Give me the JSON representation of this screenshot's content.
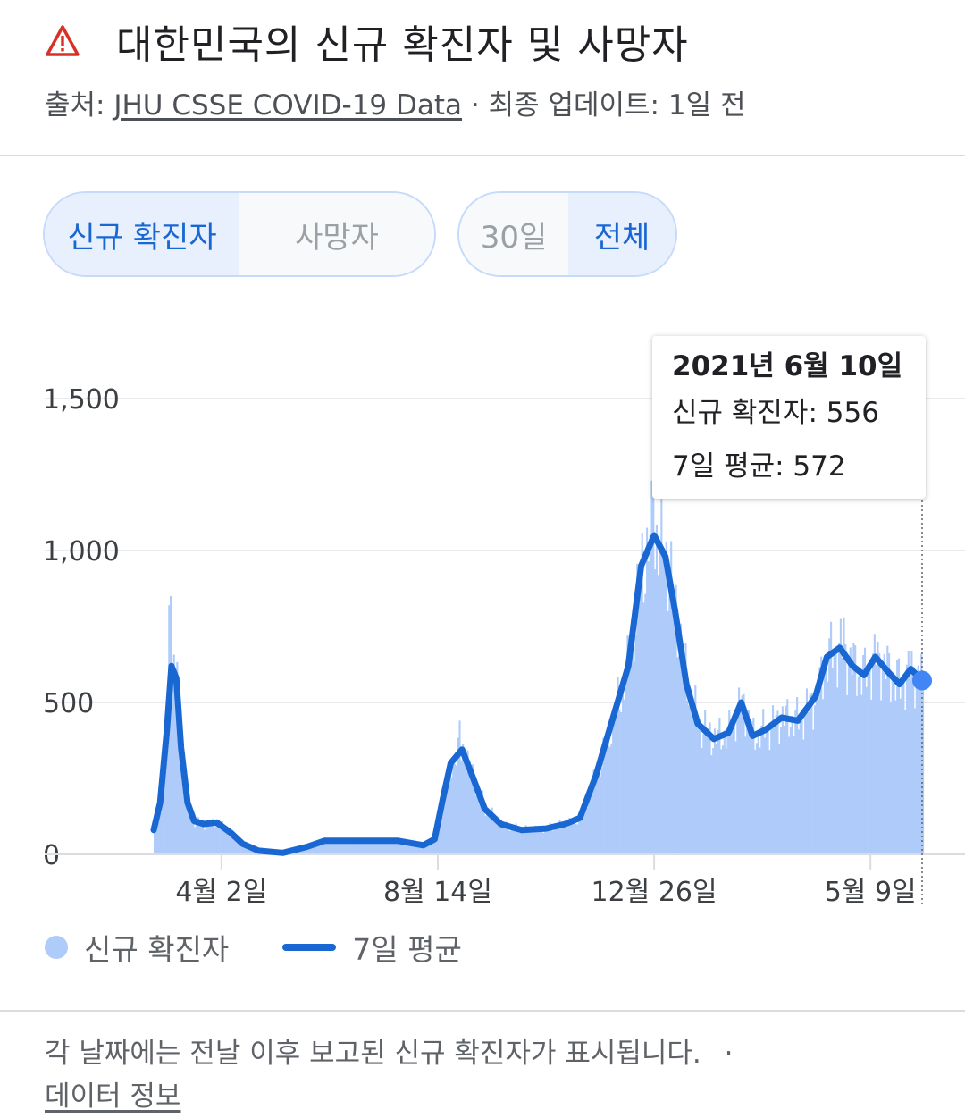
{
  "header": {
    "title": "대한민국의 신규 확진자 및 사망자",
    "source_prefix": "출처: ",
    "source_link": "JHU CSSE COVID-19 Data",
    "update_text": " · 최종 업데이트: 1일 전"
  },
  "toggles": {
    "metric": [
      {
        "label": "신규 확진자",
        "active": true
      },
      {
        "label": "사망자",
        "active": false
      }
    ],
    "range": [
      {
        "label": "30일",
        "active": false
      },
      {
        "label": "전체",
        "active": true
      }
    ]
  },
  "tooltip": {
    "date": "2021년 6월 10일",
    "cases_line": "신규 확진자: 556",
    "avg_line": "7일 평균: 572"
  },
  "legend": {
    "cases": "신규 확진자",
    "average": "7일 평균"
  },
  "footer": {
    "note": "각 날짜에는 전날 이후 보고된 신규 확진자가 표시됩니다.",
    "separator": "·",
    "link": "데이터 정보"
  },
  "colors": {
    "bars": "#aecbfa",
    "average_line": "#1967d2",
    "highlight_dot": "#4285f4",
    "warning": "#d93025"
  },
  "chart_data": {
    "type": "bar",
    "title": "대한민국의 신규 확진자 및 사망자",
    "ylim": [
      0,
      1600
    ],
    "yticks": [
      0,
      500,
      1000,
      1500
    ],
    "ytick_labels": [
      "0",
      "500",
      "1,000",
      "1,500"
    ],
    "xtick_labels": [
      "4월 2일",
      "8월 14일",
      "12월 26일",
      "5월 9일"
    ],
    "xtick_dates": [
      "2020-04-02",
      "2020-08-14",
      "2020-12-26",
      "2021-05-09"
    ],
    "x_range": [
      "2020-02-20",
      "2021-06-10"
    ],
    "series": [
      {
        "name": "7일 평균",
        "type": "line",
        "points": [
          [
            "2020-02-20",
            80
          ],
          [
            "2020-02-24",
            170
          ],
          [
            "2020-02-28",
            400
          ],
          [
            "2020-03-02",
            620
          ],
          [
            "2020-03-05",
            580
          ],
          [
            "2020-03-08",
            350
          ],
          [
            "2020-03-12",
            170
          ],
          [
            "2020-03-16",
            110
          ],
          [
            "2020-03-22",
            100
          ],
          [
            "2020-03-30",
            105
          ],
          [
            "2020-04-08",
            70
          ],
          [
            "2020-04-15",
            35
          ],
          [
            "2020-04-25",
            12
          ],
          [
            "2020-05-10",
            5
          ],
          [
            "2020-05-25",
            25
          ],
          [
            "2020-06-05",
            45
          ],
          [
            "2020-06-20",
            45
          ],
          [
            "2020-07-05",
            45
          ],
          [
            "2020-07-20",
            45
          ],
          [
            "2020-08-05",
            30
          ],
          [
            "2020-08-12",
            50
          ],
          [
            "2020-08-17",
            180
          ],
          [
            "2020-08-22",
            300
          ],
          [
            "2020-08-29",
            345
          ],
          [
            "2020-09-05",
            250
          ],
          [
            "2020-09-12",
            150
          ],
          [
            "2020-09-22",
            100
          ],
          [
            "2020-10-05",
            80
          ],
          [
            "2020-10-20",
            85
          ],
          [
            "2020-11-01",
            100
          ],
          [
            "2020-11-10",
            120
          ],
          [
            "2020-11-20",
            260
          ],
          [
            "2020-11-30",
            440
          ],
          [
            "2020-12-10",
            620
          ],
          [
            "2020-12-18",
            950
          ],
          [
            "2020-12-26",
            1050
          ],
          [
            "2021-01-02",
            980
          ],
          [
            "2021-01-08",
            800
          ],
          [
            "2021-01-15",
            560
          ],
          [
            "2021-01-22",
            430
          ],
          [
            "2021-02-01",
            380
          ],
          [
            "2021-02-10",
            400
          ],
          [
            "2021-02-18",
            500
          ],
          [
            "2021-02-25",
            390
          ],
          [
            "2021-03-05",
            410
          ],
          [
            "2021-03-15",
            450
          ],
          [
            "2021-03-25",
            440
          ],
          [
            "2021-04-05",
            520
          ],
          [
            "2021-04-12",
            650
          ],
          [
            "2021-04-20",
            680
          ],
          [
            "2021-04-28",
            620
          ],
          [
            "2021-05-05",
            590
          ],
          [
            "2021-05-12",
            650
          ],
          [
            "2021-05-20",
            600
          ],
          [
            "2021-05-27",
            560
          ],
          [
            "2021-06-03",
            610
          ],
          [
            "2021-06-10",
            572
          ]
        ]
      },
      {
        "name": "신규 확진자",
        "type": "bar",
        "points": [
          [
            "2020-03-01",
            850
          ],
          [
            "2020-02-29",
            820
          ],
          [
            "2020-08-27",
            440
          ],
          [
            "2020-12-25",
            1240
          ],
          [
            "2020-12-24",
            1230
          ],
          [
            "2021-04-22",
            780
          ],
          [
            "2021-06-10",
            556
          ]
        ]
      }
    ],
    "tooltip_point": {
      "date": "2021-06-10",
      "cases": 556,
      "average": 572
    },
    "legend_position": "bottom-left",
    "grid": true
  }
}
